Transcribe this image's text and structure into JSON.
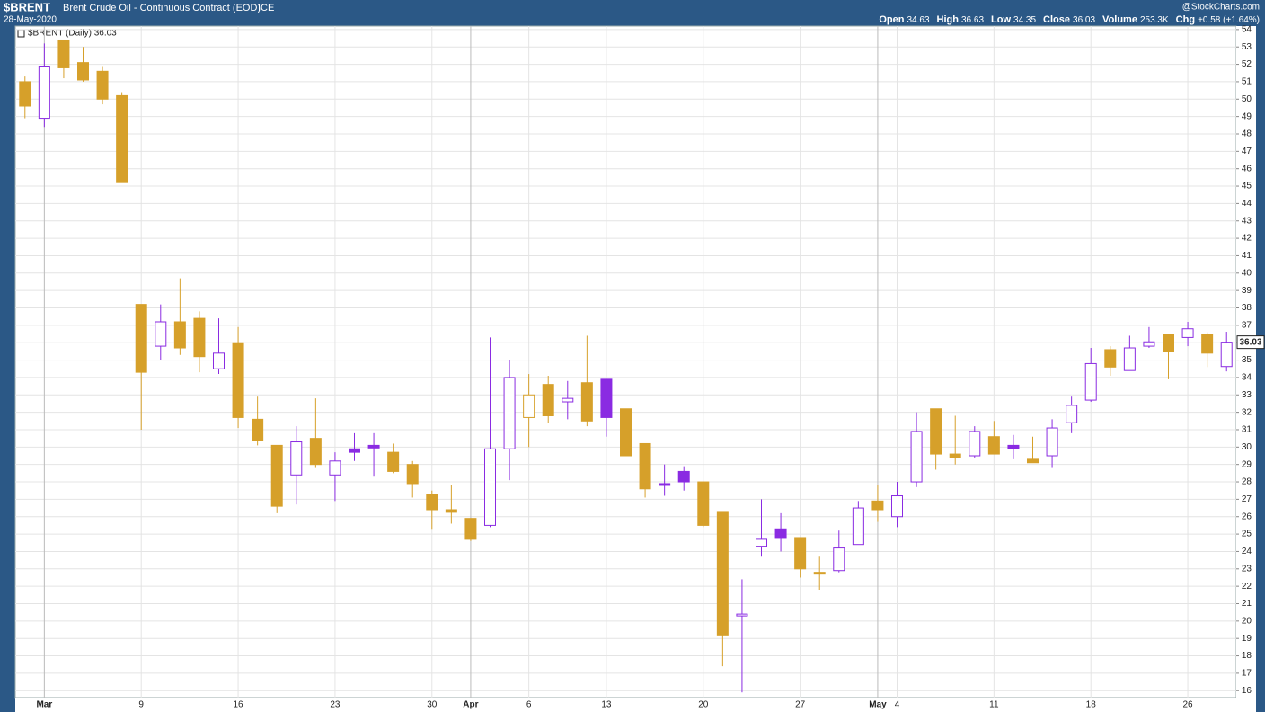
{
  "chart_data": {
    "type": "candlestick",
    "title": "$BRENT",
    "subtitle": "Brent Crude Oil - Continuous Contract (EOD)",
    "exchange": "ICE",
    "date": "28-May-2020",
    "watermark": "@StockCharts.com",
    "header_stats": [
      {
        "label": "Open",
        "value": "34.63"
      },
      {
        "label": "High",
        "value": "36.63"
      },
      {
        "label": "Low",
        "value": "34.35"
      },
      {
        "label": "Close",
        "value": "36.03"
      },
      {
        "label": "Volume",
        "value": "253.3K"
      },
      {
        "label": "Chg",
        "value": "+0.58 (+1.64%)"
      }
    ],
    "legend": "$BRENT (Daily) 36.03",
    "last_value": 36.03,
    "up_color": "#8a2be2",
    "down_color": "#d6a02a",
    "grid": true,
    "categories": [
      null,
      "Mar",
      null,
      null,
      null,
      null,
      "9",
      null,
      null,
      null,
      null,
      "16",
      null,
      null,
      null,
      null,
      "23",
      null,
      null,
      null,
      null,
      "30",
      null,
      "Apr",
      null,
      null,
      "6",
      null,
      null,
      null,
      "13",
      null,
      null,
      null,
      null,
      "20",
      null,
      null,
      null,
      null,
      "27",
      null,
      null,
      null,
      "May",
      "4",
      null,
      null,
      null,
      null,
      "11",
      null,
      null,
      null,
      null,
      "18",
      null,
      null,
      null,
      null,
      "26",
      null,
      null
    ],
    "open": [
      51.0,
      48.9,
      53.4,
      52.1,
      51.6,
      50.2,
      38.2,
      35.8,
      37.2,
      37.4,
      34.5,
      36.0,
      31.6,
      30.1,
      28.4,
      30.5,
      28.4,
      29.9,
      30.1,
      29.7,
      29.0,
      27.3,
      26.4,
      25.9,
      25.5,
      29.9,
      31.7,
      33.6,
      32.6,
      33.7,
      33.9,
      32.2,
      30.2,
      27.9,
      28.6,
      28.0,
      26.3,
      20.3,
      24.3,
      25.3,
      24.8,
      22.8,
      22.9,
      24.4,
      26.9,
      26.0,
      28.0,
      32.2,
      29.6,
      29.5,
      30.6,
      30.1,
      29.3,
      29.5,
      31.4,
      32.7,
      35.6,
      34.4,
      35.8,
      36.5,
      36.3,
      36.5,
      34.63
    ],
    "high": [
      51.3,
      53.2,
      53.4,
      53.0,
      51.9,
      50.4,
      38.2,
      38.2,
      39.7,
      37.8,
      37.4,
      36.9,
      32.9,
      30.1,
      31.2,
      32.8,
      29.7,
      30.8,
      30.8,
      30.2,
      29.2,
      27.5,
      27.8,
      25.9,
      36.3,
      35.0,
      34.2,
      34.1,
      33.8,
      36.4,
      33.9,
      32.2,
      30.2,
      29.0,
      28.9,
      28.0,
      26.3,
      22.4,
      27.0,
      26.2,
      24.8,
      23.7,
      25.2,
      26.9,
      27.8,
      28.0,
      32.0,
      32.2,
      31.8,
      31.2,
      31.5,
      30.7,
      30.6,
      31.6,
      32.9,
      35.7,
      35.8,
      36.4,
      36.9,
      36.5,
      37.2,
      36.6,
      36.63
    ],
    "low": [
      48.9,
      48.4,
      51.2,
      51.0,
      49.7,
      45.2,
      31.0,
      35.0,
      35.3,
      34.3,
      34.2,
      31.1,
      30.1,
      26.2,
      26.7,
      28.8,
      26.9,
      29.2,
      28.3,
      28.5,
      27.1,
      25.3,
      25.6,
      24.6,
      25.4,
      28.1,
      30.0,
      31.4,
      31.6,
      31.2,
      30.6,
      29.5,
      27.1,
      27.2,
      27.5,
      25.4,
      17.4,
      15.9,
      23.7,
      24.0,
      22.5,
      21.8,
      22.8,
      24.4,
      25.7,
      25.4,
      27.7,
      28.7,
      29.0,
      29.4,
      29.6,
      29.3,
      29.1,
      28.8,
      30.8,
      32.6,
      34.1,
      34.4,
      35.7,
      33.9,
      35.8,
      34.6,
      34.35
    ],
    "close": [
      49.6,
      51.9,
      51.8,
      51.1,
      50.0,
      45.2,
      34.3,
      37.2,
      35.7,
      35.2,
      35.4,
      31.7,
      30.4,
      26.6,
      30.3,
      29.0,
      29.2,
      29.7,
      29.95,
      28.6,
      27.9,
      26.4,
      26.25,
      24.7,
      29.9,
      34.0,
      33.0,
      31.8,
      32.8,
      31.5,
      31.7,
      29.5,
      27.6,
      27.8,
      28.0,
      25.5,
      19.2,
      20.4,
      24.7,
      24.75,
      23.0,
      22.7,
      24.2,
      26.5,
      26.4,
      27.2,
      30.9,
      29.6,
      29.4,
      30.9,
      29.6,
      29.9,
      29.1,
      31.1,
      32.4,
      34.8,
      34.6,
      35.7,
      36.05,
      35.5,
      36.8,
      35.4,
      36.03
    ],
    "ylim": [
      15.6,
      54.2
    ],
    "yticks": [
      16,
      17,
      18,
      19,
      20,
      21,
      22,
      23,
      24,
      25,
      26,
      27,
      28,
      29,
      30,
      31,
      32,
      33,
      34,
      35,
      36,
      37,
      38,
      39,
      40,
      41,
      42,
      43,
      44,
      45,
      46,
      47,
      48,
      49,
      50,
      51,
      52,
      53,
      54
    ]
  }
}
